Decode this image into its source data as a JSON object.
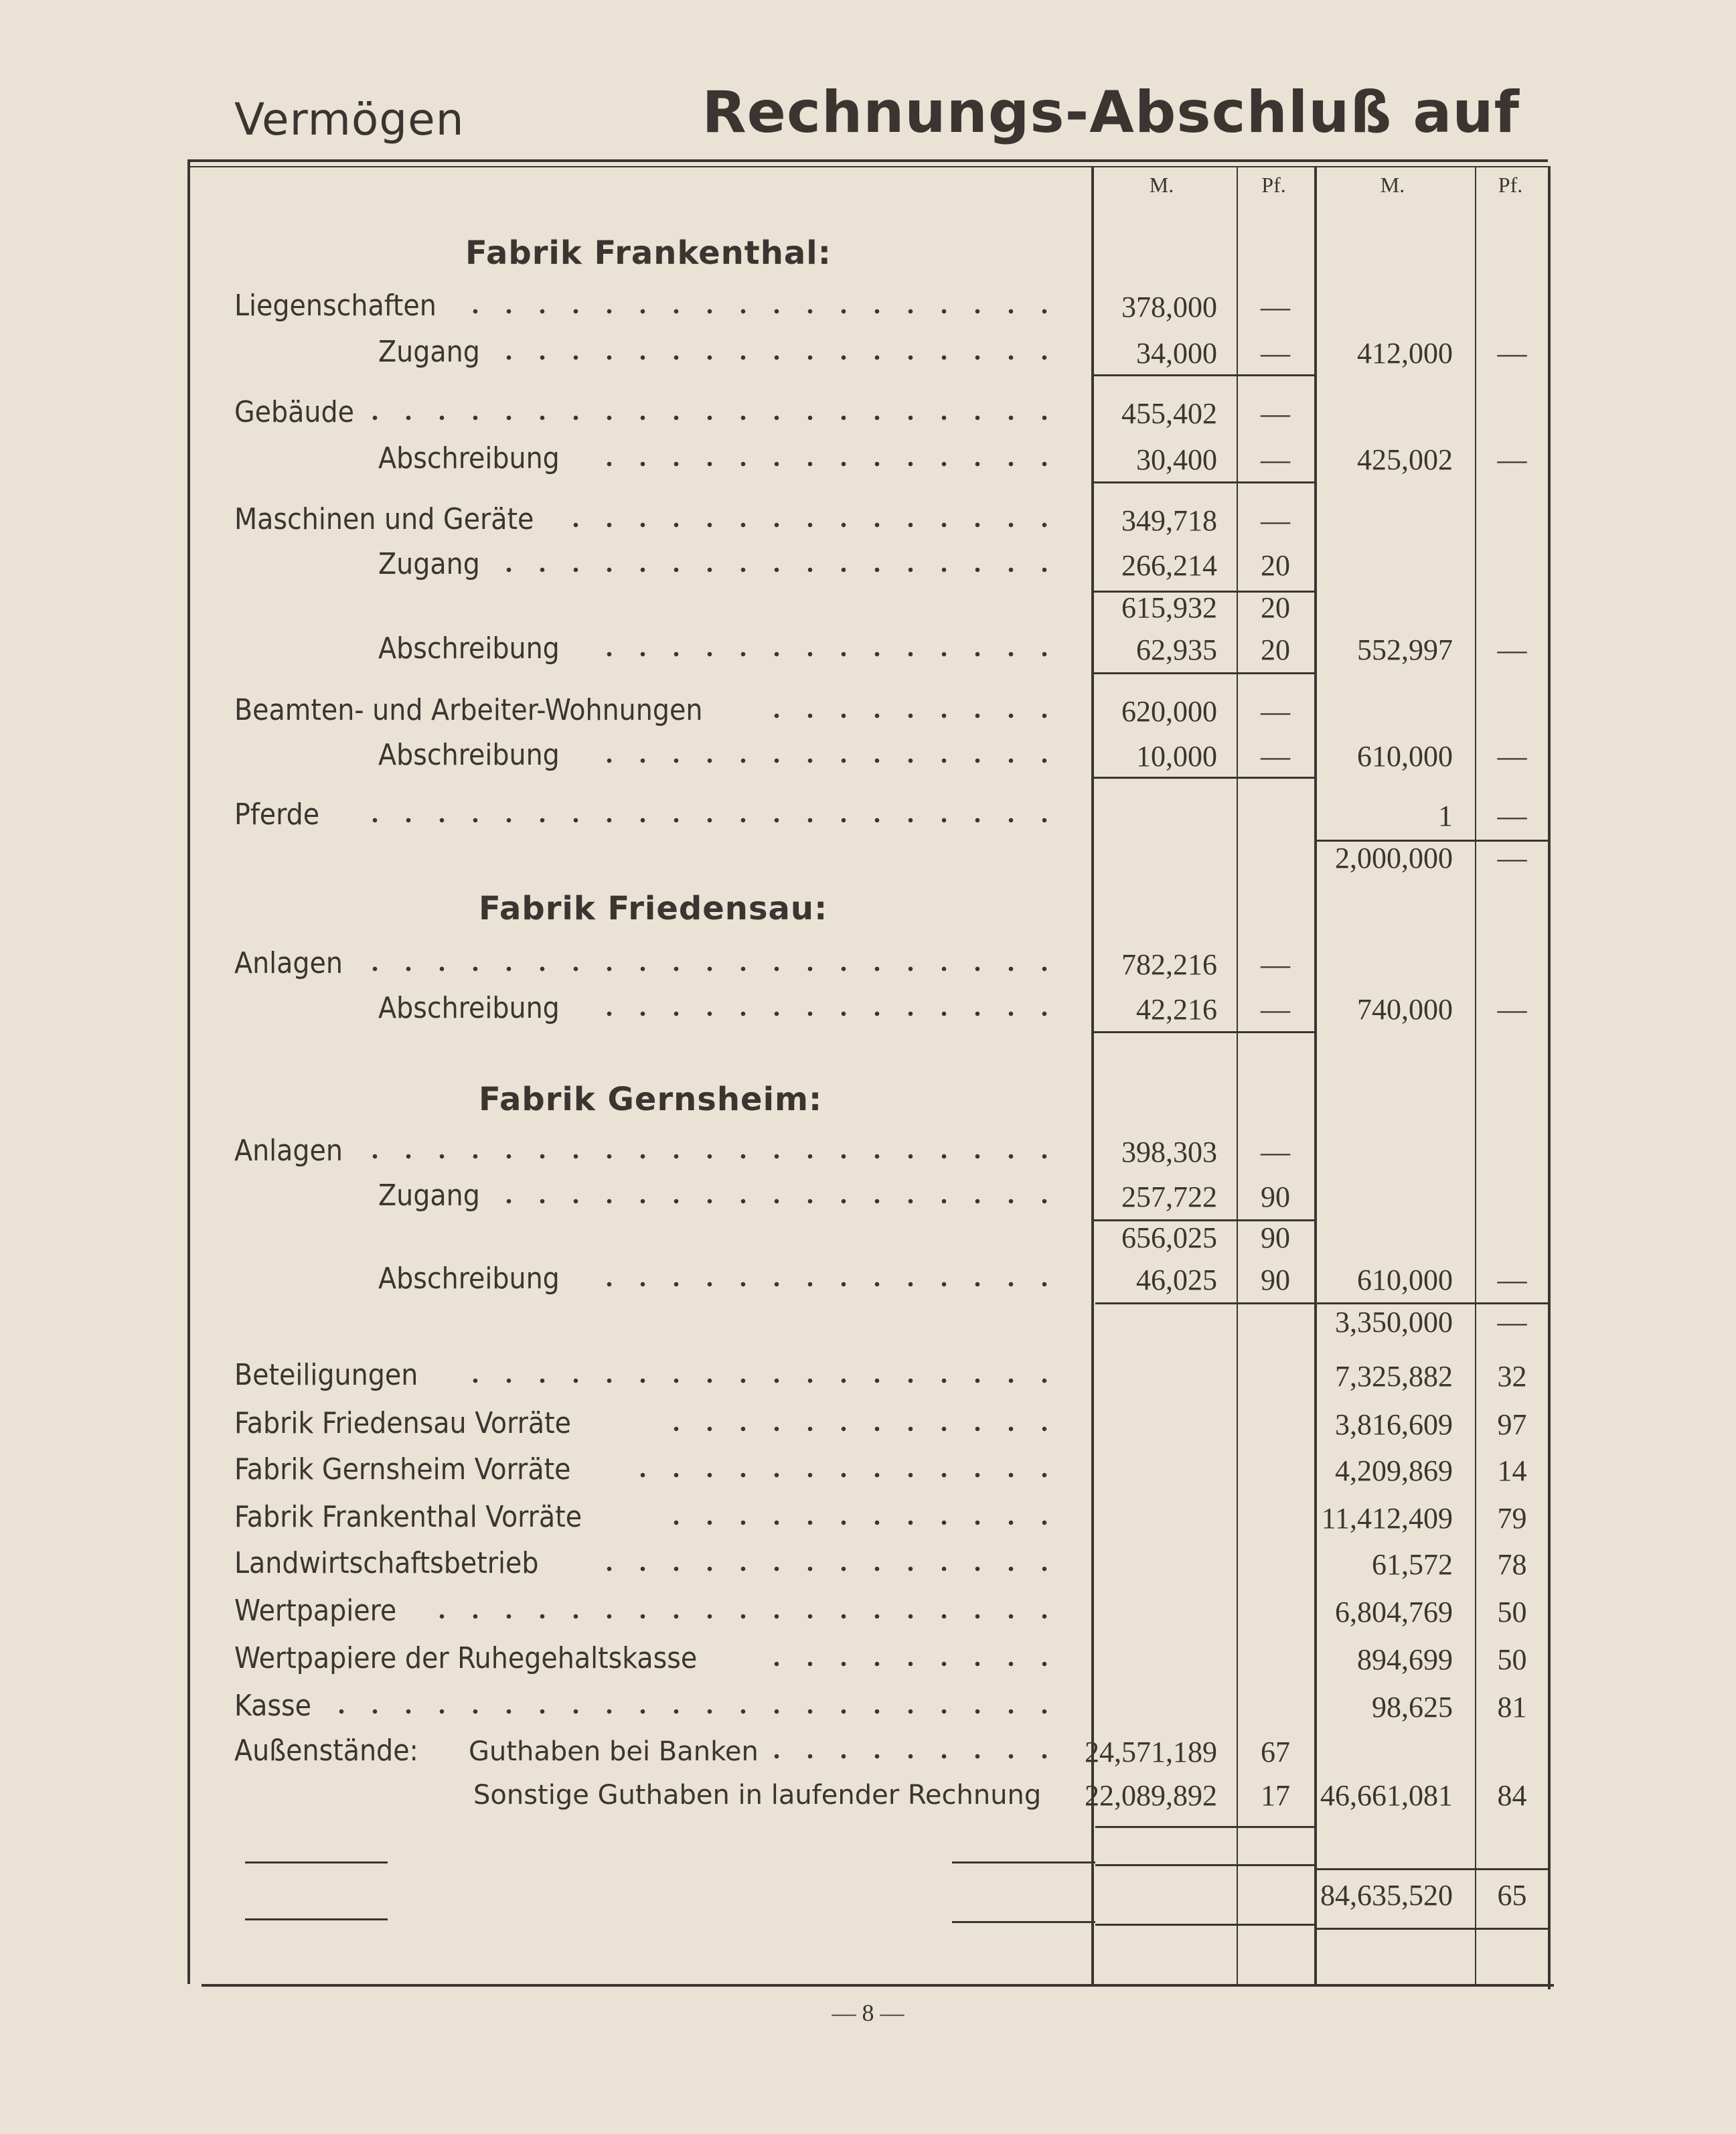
{
  "header": {
    "left": "Vermögen",
    "right": "Rechnungs-Abschluß auf"
  },
  "columns": {
    "m1": "M.",
    "pf1": "Pf.",
    "m2": "M.",
    "pf2": "Pf."
  },
  "rows": [
    {
      "type": "heading",
      "label": "Fabrik Frankenthal:"
    },
    {
      "type": "item",
      "indent": 0,
      "label": "Liegenschaften",
      "m1": "378,000",
      "pf1": "—"
    },
    {
      "type": "item",
      "indent": 1,
      "label": "Zugang",
      "m1": "34,000",
      "pf1": "—",
      "m2": "412,000",
      "pf2": "—"
    },
    {
      "type": "item",
      "indent": 0,
      "label": "Gebäude",
      "m1": "455,402",
      "pf1": "—"
    },
    {
      "type": "item",
      "indent": 1,
      "label": "Abschreibung",
      "m1": "30,400",
      "pf1": "—",
      "m2": "425,002",
      "pf2": "—"
    },
    {
      "type": "item",
      "indent": 0,
      "label": "Maschinen und Geräte",
      "m1": "349,718",
      "pf1": "—"
    },
    {
      "type": "item",
      "indent": 1,
      "label": "Zugang",
      "m1": "266,214",
      "pf1": "20"
    },
    {
      "type": "sum",
      "m1": "615,932",
      "pf1": "20"
    },
    {
      "type": "item",
      "indent": 1,
      "label": "Abschreibung",
      "m1": "62,935",
      "pf1": "20",
      "m2": "552,997",
      "pf2": "—"
    },
    {
      "type": "item",
      "indent": 0,
      "label": "Beamten- und Arbeiter-Wohnungen",
      "m1": "620,000",
      "pf1": "—"
    },
    {
      "type": "item",
      "indent": 1,
      "label": "Abschreibung",
      "m1": "10,000",
      "pf1": "—",
      "m2": "610,000",
      "pf2": "—"
    },
    {
      "type": "item",
      "indent": 0,
      "label": "Pferde",
      "m2": "1",
      "pf2": "—"
    },
    {
      "type": "sum",
      "m2": "2,000,000",
      "pf2": "—"
    },
    {
      "type": "heading",
      "label": "Fabrik Friedensau:"
    },
    {
      "type": "item",
      "indent": 0,
      "label": "Anlagen",
      "m1": "782,216",
      "pf1": "—"
    },
    {
      "type": "item",
      "indent": 1,
      "label": "Abschreibung",
      "m1": "42,216",
      "pf1": "—",
      "m2": "740,000",
      "pf2": "—"
    },
    {
      "type": "heading",
      "label": "Fabrik Gernsheim:"
    },
    {
      "type": "item",
      "indent": 0,
      "label": "Anlagen",
      "m1": "398,303",
      "pf1": "—"
    },
    {
      "type": "item",
      "indent": 1,
      "label": "Zugang",
      "m1": "257,722",
      "pf1": "90"
    },
    {
      "type": "sum",
      "m1": "656,025",
      "pf1": "90"
    },
    {
      "type": "item",
      "indent": 1,
      "label": "Abschreibung",
      "m1": "46,025",
      "pf1": "90",
      "m2": "610,000",
      "pf2": "—"
    },
    {
      "type": "sum",
      "m2": "3,350,000",
      "pf2": "—"
    },
    {
      "type": "item",
      "indent": 0,
      "label": "Beteiligungen",
      "m2": "7,325,882",
      "pf2": "32"
    },
    {
      "type": "item",
      "indent": 0,
      "label": "Fabrik Friedensau Vorräte",
      "m2": "3,816,609",
      "pf2": "97"
    },
    {
      "type": "item",
      "indent": 0,
      "label": "Fabrik Gernsheim Vorräte",
      "m2": "4,209,869",
      "pf2": "14"
    },
    {
      "type": "item",
      "indent": 0,
      "label": "Fabrik Frankenthal Vorräte",
      "m2": "11,412,409",
      "pf2": "79"
    },
    {
      "type": "item",
      "indent": 0,
      "label": "Landwirtschaftsbetrieb",
      "m2": "61,572",
      "pf2": "78"
    },
    {
      "type": "item",
      "indent": 0,
      "label": "Wertpapiere",
      "m2": "6,804,769",
      "pf2": "50"
    },
    {
      "type": "item",
      "indent": 0,
      "label": "Wertpapiere der Ruhegehaltskasse",
      "m2": "894,699",
      "pf2": "50"
    },
    {
      "type": "item",
      "indent": 0,
      "label": "Kasse",
      "m2": "98,625",
      "pf2": "81"
    },
    {
      "type": "item",
      "indent": 0,
      "label": "Außenstände:",
      "sub": "Guthaben bei Banken",
      "m1": "24,571,189",
      "pf1": "67"
    },
    {
      "type": "subonly",
      "sub": "Sonstige Guthaben in laufender Rechnung",
      "m1": "22,089,892",
      "pf1": "17",
      "m2": "46,661,081",
      "pf2": "84"
    },
    {
      "type": "sum",
      "m2": "84,635,520",
      "pf2": "65"
    }
  ],
  "footer": "— 8 —"
}
